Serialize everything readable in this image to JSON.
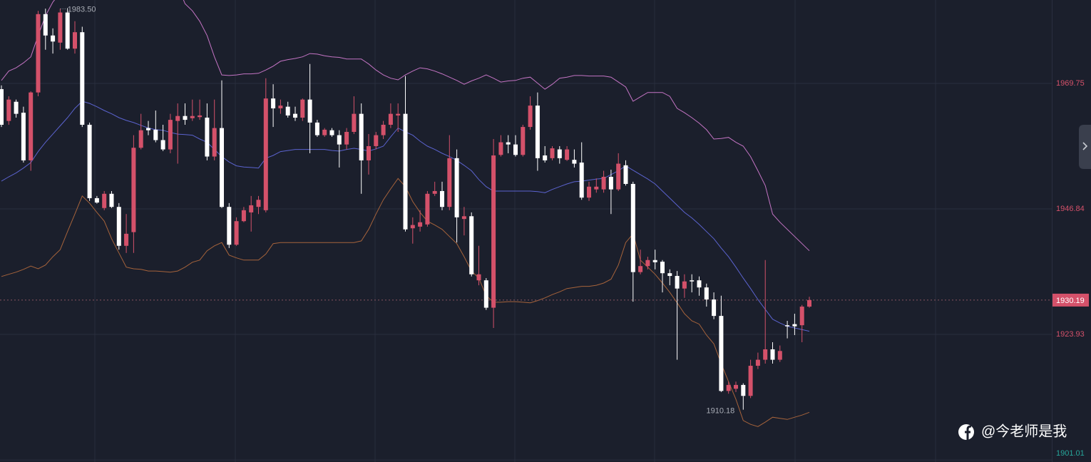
{
  "chart_data": {
    "type": "candlestick",
    "open": [
      1968.7,
      1962.9,
      1966.4,
      1964.4,
      1955.7,
      1968.1,
      1982.4,
      1978.5,
      1977.2,
      1982.7,
      1976.1,
      1979.1,
      1962.2,
      1948.8,
      1947.0,
      1949.6,
      1947.2,
      1940.1,
      1942.6,
      1958.0,
      1961.6,
      1961.3,
      1959.4,
      1957.7,
      1962.9,
      1963.8,
      1963.4,
      1963.6,
      1963.5,
      1956.4,
      1961.6,
      1947.2,
      1940.3,
      1944.6,
      1946.2,
      1947.2,
      1946.6,
      1967.0,
      1965.2,
      1965.5,
      1964.2,
      1963.5,
      1966.8,
      1962.6,
      1960.3,
      1961.2,
      1960.3,
      1958.6,
      1960.9,
      1964.2,
      1955.7,
      1958.3,
      1960.3,
      1962.2,
      1963.9,
      1964.2,
      1943.3,
      1943.6,
      1944.0,
      1949.6,
      1950.1,
      1947.2,
      1956.1,
      1945.0,
      1945.5,
      1933.8,
      1933.8,
      1928.8,
      1956.7,
      1959.0,
      1958.6,
      1956.7,
      1961.8,
      1965.7,
      1956.6,
      1956.1,
      1957.7,
      1955.8,
      1955.8,
      1955.3,
      1948.9,
      1950.4,
      1950.4,
      1952.7,
      1950.4,
      1954.8,
      1951.4,
      1935.3,
      1936.4,
      1937.5,
      1937.2,
      1935.1,
      1934.6,
      1932.3,
      1933.8,
      1933.8,
      1932.5,
      1930.3,
      1927.3,
      1913.6,
      1914.0,
      1914.7,
      1912.7,
      1918.2,
      1919.3,
      1921.2,
      1919.3,
      1925.6,
      1925.8,
      1925.6,
      1929.0
    ],
    "high": [
      1969.4,
      1967.4,
      1966.8,
      1965.5,
      1968.3,
      1983.0,
      1983.4,
      1979.8,
      1983.4,
      1983.5,
      1981.1,
      1980.1,
      1962.6,
      1949.2,
      1950.1,
      1950.1,
      1947.9,
      1945.9,
      1960.3,
      1964.2,
      1962.9,
      1964.8,
      1962.2,
      1964.2,
      1966.1,
      1966.1,
      1966.8,
      1966.8,
      1966.1,
      1966.8,
      1970.3,
      1947.9,
      1945.3,
      1947.2,
      1949.2,
      1949.2,
      1970.7,
      1969.6,
      1966.8,
      1966.4,
      1965.5,
      1967.0,
      1973.3,
      1963.1,
      1961.6,
      1961.6,
      1961.2,
      1961.6,
      1967.4,
      1966.1,
      1960.5,
      1960.9,
      1962.9,
      1966.1,
      1966.1,
      1971.1,
      1945.3,
      1946.6,
      1950.1,
      1951.8,
      1951.8,
      1960.3,
      1957.7,
      1947.2,
      1946.2,
      1940.1,
      1934.2,
      1959.6,
      1960.3,
      1960.3,
      1960.3,
      1962.2,
      1967.4,
      1968.1,
      1958.3,
      1958.3,
      1958.3,
      1958.3,
      1957.7,
      1959.0,
      1951.8,
      1952.4,
      1953.8,
      1954.0,
      1957.0,
      1955.7,
      1951.8,
      1939.4,
      1938.1,
      1939.4,
      1937.5,
      1935.8,
      1935.5,
      1934.9,
      1934.9,
      1934.5,
      1933.2,
      1931.6,
      1931.0,
      1915.3,
      1915.3,
      1915.0,
      1919.3,
      1920.6,
      1937.5,
      1922.5,
      1921.9,
      1926.4,
      1927.7,
      1929.3,
      1930.8
    ],
    "low": [
      1961.8,
      1962.2,
      1963.5,
      1955.3,
      1953.8,
      1967.4,
      1975.9,
      1975.2,
      1975.9,
      1975.9,
      1975.2,
      1961.8,
      1948.3,
      1947.8,
      1946.6,
      1947.0,
      1939.4,
      1938.8,
      1938.8,
      1957.7,
      1960.3,
      1959.0,
      1957.4,
      1957.0,
      1955.1,
      1962.2,
      1962.9,
      1963.1,
      1955.7,
      1955.7,
      1947.0,
      1939.7,
      1940.1,
      1944.4,
      1942.7,
      1945.9,
      1946.2,
      1961.8,
      1964.2,
      1963.5,
      1962.9,
      1962.9,
      1957.0,
      1960.0,
      1960.0,
      1960.0,
      1954.4,
      1957.7,
      1960.5,
      1949.6,
      1953.1,
      1957.7,
      1959.6,
      1961.6,
      1960.9,
      1942.7,
      1940.5,
      1942.7,
      1943.6,
      1949.2,
      1946.6,
      1946.6,
      1940.7,
      1942.0,
      1934.5,
      1932.9,
      1928.4,
      1925.1,
      1956.4,
      1957.0,
      1956.4,
      1956.4,
      1961.3,
      1953.8,
      1955.3,
      1955.7,
      1955.1,
      1955.6,
      1954.4,
      1948.5,
      1948.3,
      1949.8,
      1949.8,
      1945.9,
      1950.1,
      1951.1,
      1929.9,
      1934.9,
      1935.8,
      1935.8,
      1931.6,
      1932.9,
      1919.3,
      1930.6,
      1931.6,
      1931.0,
      1929.0,
      1926.7,
      1913.4,
      1913.1,
      1913.4,
      1910.18,
      1912.3,
      1917.6,
      1918.6,
      1918.6,
      1918.9,
      1923.2,
      1923.8,
      1922.5,
      1928.8
    ],
    "close": [
      1962.2,
      1966.8,
      1964.2,
      1955.7,
      1968.1,
      1982.4,
      1978.5,
      1977.4,
      1982.7,
      1976.1,
      1979.1,
      1962.2,
      1948.8,
      1948.0,
      1949.6,
      1947.2,
      1940.1,
      1942.3,
      1958.0,
      1961.2,
      1961.2,
      1959.4,
      1957.7,
      1963.1,
      1963.8,
      1963.1,
      1963.8,
      1963.9,
      1956.4,
      1961.6,
      1947.2,
      1940.3,
      1944.6,
      1946.6,
      1947.5,
      1948.5,
      1967.0,
      1965.2,
      1965.7,
      1963.9,
      1963.5,
      1966.8,
      1962.6,
      1960.3,
      1961.3,
      1960.3,
      1958.6,
      1960.9,
      1964.2,
      1955.7,
      1958.3,
      1960.3,
      1962.2,
      1964.2,
      1964.2,
      1943.1,
      1943.9,
      1944.4,
      1949.6,
      1950.1,
      1947.2,
      1956.1,
      1945.3,
      1945.5,
      1934.9,
      1934.9,
      1928.8,
      1956.6,
      1959.0,
      1958.6,
      1956.7,
      1961.8,
      1965.7,
      1956.1,
      1955.7,
      1957.9,
      1956.1,
      1957.7,
      1955.1,
      1948.9,
      1950.9,
      1950.9,
      1952.7,
      1950.4,
      1955.1,
      1951.4,
      1935.3,
      1936.4,
      1937.5,
      1937.1,
      1935.1,
      1934.6,
      1932.3,
      1933.6,
      1933.6,
      1932.5,
      1930.3,
      1927.3,
      1913.6,
      1914.7,
      1914.7,
      1912.7,
      1918.2,
      1919.3,
      1921.2,
      1919.3,
      1920.9,
      1925.4,
      1925.4,
      1929.0,
      1930.19
    ],
    "up_color": "#d4516a",
    "down_color": "#ffffff",
    "lines": [
      {
        "color": "#c474c4",
        "values": [
          1970.3,
          1972.0,
          1972.6,
          1973.5,
          1974.6,
          1978.5,
          1982.1,
          1984.6,
          1986.3,
          1987.0,
          1987.6,
          1987.6,
          1987.6,
          1987.6,
          1987.6,
          1987.6,
          1987.6,
          1987.6,
          1987.6,
          1987.6,
          1987.6,
          1987.6,
          1987.6,
          1987.6,
          1987.6,
          1984.3,
          1983.0,
          1981.1,
          1978.5,
          1974.6,
          1971.3,
          1971.2,
          1971.3,
          1971.5,
          1971.5,
          1971.6,
          1972.2,
          1972.9,
          1973.8,
          1974.1,
          1974.3,
          1974.6,
          1975.2,
          1975.1,
          1974.8,
          1974.6,
          1974.5,
          1974.2,
          1974.2,
          1974.2,
          1973.3,
          1972.2,
          1971.3,
          1970.7,
          1970.4,
          1971.3,
          1972.0,
          1972.6,
          1972.4,
          1972.0,
          1971.5,
          1970.9,
          1970.3,
          1969.6,
          1970.2,
          1970.7,
          1971.3,
          1970.7,
          1970.0,
          1970.2,
          1970.3,
          1970.7,
          1970.9,
          1969.8,
          1968.7,
          1969.6,
          1970.7,
          1970.9,
          1971.2,
          1971.2,
          1971.1,
          1971.1,
          1971.1,
          1970.9,
          1970.0,
          1969.1,
          1966.5,
          1967.3,
          1968.1,
          1968.1,
          1968.1,
          1967.4,
          1965.2,
          1964.4,
          1963.5,
          1962.5,
          1961.3,
          1959.6,
          1959.7,
          1959.9,
          1959.0,
          1958.3,
          1956.4,
          1953.8,
          1951.1,
          1945.9,
          1944.4,
          1943.1,
          1941.8,
          1940.5,
          1939.2
        ]
      },
      {
        "color": "#5b63cf",
        "values": [
          1951.9,
          1952.7,
          1953.4,
          1954.3,
          1955.3,
          1957.3,
          1959.0,
          1960.5,
          1962.0,
          1963.5,
          1965.2,
          1966.5,
          1966.1,
          1965.5,
          1964.8,
          1964.2,
          1963.5,
          1963.0,
          1962.6,
          1962.1,
          1961.6,
          1961.3,
          1961.2,
          1960.8,
          1960.5,
          1960.4,
          1960.3,
          1959.6,
          1959.0,
          1957.7,
          1956.4,
          1955.4,
          1954.7,
          1954.5,
          1954.4,
          1954.3,
          1956.1,
          1956.6,
          1957.3,
          1957.5,
          1957.7,
          1957.7,
          1957.7,
          1957.7,
          1957.7,
          1957.5,
          1957.4,
          1957.7,
          1957.9,
          1957.7,
          1957.4,
          1957.8,
          1958.3,
          1960.0,
          1961.6,
          1960.9,
          1960.3,
          1959.2,
          1958.3,
          1957.7,
          1957.0,
          1956.4,
          1955.7,
          1954.8,
          1953.8,
          1952.2,
          1950.9,
          1950.1,
          1950.1,
          1950.1,
          1950.1,
          1950.1,
          1950.1,
          1950.0,
          1949.8,
          1950.4,
          1950.9,
          1951.4,
          1951.8,
          1951.9,
          1952.1,
          1952.3,
          1952.4,
          1953.1,
          1953.8,
          1954.7,
          1953.9,
          1953.1,
          1952.3,
          1951.4,
          1950.1,
          1948.8,
          1947.5,
          1946.2,
          1945.2,
          1944.0,
          1942.7,
          1941.4,
          1939.7,
          1938.1,
          1936.2,
          1934.2,
          1932.3,
          1930.3,
          1928.5,
          1926.7,
          1926.0,
          1925.4,
          1925.1,
          1924.8,
          1924.5
        ]
      },
      {
        "color": "#a6633b",
        "values": [
          1934.5,
          1934.9,
          1935.3,
          1935.8,
          1936.4,
          1935.9,
          1936.6,
          1938.1,
          1939.4,
          1942.7,
          1945.9,
          1949.2,
          1947.9,
          1946.2,
          1944.6,
          1941.4,
          1938.8,
          1936.2,
          1935.9,
          1935.8,
          1935.5,
          1935.5,
          1935.4,
          1935.3,
          1935.5,
          1936.2,
          1937.1,
          1937.5,
          1939.2,
          1940.1,
          1940.7,
          1938.4,
          1937.9,
          1937.5,
          1937.5,
          1937.5,
          1938.6,
          1940.5,
          1940.7,
          1940.7,
          1940.7,
          1940.7,
          1940.7,
          1940.7,
          1940.7,
          1940.7,
          1940.7,
          1940.7,
          1940.7,
          1941.0,
          1943.1,
          1945.9,
          1948.5,
          1950.5,
          1952.4,
          1950.9,
          1948.2,
          1946.2,
          1944.6,
          1943.9,
          1943.1,
          1941.8,
          1940.5,
          1938.1,
          1935.5,
          1934.2,
          1931.0,
          1929.8,
          1929.8,
          1929.9,
          1929.9,
          1929.8,
          1929.7,
          1930.1,
          1930.6,
          1931.2,
          1931.7,
          1932.3,
          1932.5,
          1932.7,
          1932.7,
          1932.9,
          1933.3,
          1934.0,
          1936.6,
          1940.7,
          1942.3,
          1937.5,
          1936.2,
          1934.9,
          1933.3,
          1931.6,
          1929.7,
          1927.7,
          1926.4,
          1925.8,
          1923.8,
          1922.2,
          1918.6,
          1915.3,
          1912.1,
          1908.2,
          1907.5,
          1907.1,
          1907.9,
          1908.8,
          1908.6,
          1908.4,
          1908.8,
          1909.2,
          1909.7
        ]
      }
    ],
    "ylim": [
      1900.63,
      1984.98
    ],
    "yticks": [
      1969.75,
      1946.84,
      1923.93,
      1901.01
    ],
    "ytick_colors": [
      "#d4516a",
      "#d4516a",
      "#d4516a",
      "#26a69a"
    ],
    "grid": true,
    "last_price": 1930.19,
    "annotations": [
      {
        "value": 1983.5,
        "label": "1983.50"
      },
      {
        "value": 1910.18,
        "label": "1910.18"
      }
    ]
  },
  "watermark": "@今老师是我"
}
